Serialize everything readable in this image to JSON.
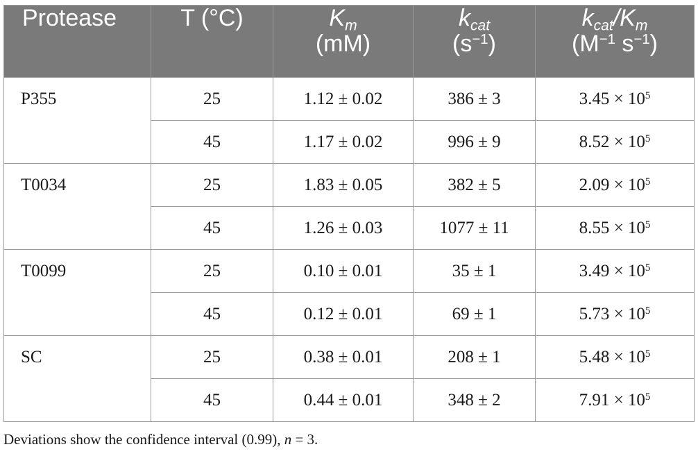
{
  "header": {
    "protease": "Protease",
    "temp": "T (°C)",
    "km_sym": "K",
    "km_sub": "m",
    "km_unit": "(mM)",
    "kcat_sym": "k",
    "kcat_sub": "cat",
    "kcat_unit_base": "(s",
    "kcat_unit_exp": "−1",
    "kcat_unit_close": ")",
    "ratio_k": "k",
    "ratio_cat": "cat",
    "ratio_slash_K": "/K",
    "ratio_m": "m",
    "ratio_unit_M": "(M",
    "ratio_unit_exp1": "−1",
    "ratio_unit_s": " s",
    "ratio_unit_exp2": "−1",
    "ratio_unit_close": ")"
  },
  "groups": [
    {
      "protease": "P355",
      "rows": [
        {
          "t": "25",
          "km": "1.12 ± 0.02",
          "kcat": "386 ± 3",
          "ratio_mant": "3.45 × 10",
          "ratio_exp": "5"
        },
        {
          "t": "45",
          "km": "1.17 ± 0.02",
          "kcat": "996 ± 9",
          "ratio_mant": "8.52 × 10",
          "ratio_exp": "5"
        }
      ]
    },
    {
      "protease": "T0034",
      "rows": [
        {
          "t": "25",
          "km": "1.83 ± 0.05",
          "kcat": "382 ± 5",
          "ratio_mant": "2.09 × 10",
          "ratio_exp": "5"
        },
        {
          "t": "45",
          "km": "1.26 ± 0.03",
          "kcat": "1077 ± 11",
          "ratio_mant": "8.55 × 10",
          "ratio_exp": "5"
        }
      ]
    },
    {
      "protease": "T0099",
      "rows": [
        {
          "t": "25",
          "km": "0.10 ± 0.01",
          "kcat": "35 ± 1",
          "ratio_mant": "3.49 × 10",
          "ratio_exp": "5"
        },
        {
          "t": "45",
          "km": "0.12 ± 0.01",
          "kcat": "69 ± 1",
          "ratio_mant": "5.73 × 10",
          "ratio_exp": "5"
        }
      ]
    },
    {
      "protease": "SC",
      "rows": [
        {
          "t": "25",
          "km": "0.38 ± 0.01",
          "kcat": "208 ± 1",
          "ratio_mant": "5.48 × 10",
          "ratio_exp": "5"
        },
        {
          "t": "45",
          "km": "0.44 ± 0.01",
          "kcat": "348 ± 2",
          "ratio_mant": "7.91 × 10",
          "ratio_exp": "5"
        }
      ]
    }
  ],
  "footnote": {
    "text_before": "Deviations show the confidence interval (0.99), ",
    "n_symbol": "n",
    "text_after": " = 3."
  }
}
